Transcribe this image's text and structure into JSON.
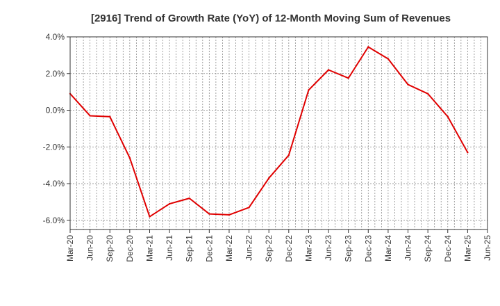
{
  "chart_data": {
    "type": "line",
    "title": "[2916]  Trend of Growth Rate (YoY) of 12-Month Moving Sum of Revenues",
    "xlabel": "",
    "ylabel": "",
    "ylim": [
      -6.5,
      4.0
    ],
    "y_ticks": [
      4.0,
      2.0,
      0.0,
      -2.0,
      -4.0,
      -6.0
    ],
    "y_tick_labels": [
      "4.0%",
      "2.0%",
      "0.0%",
      "-2.0%",
      "-4.0%",
      "-6.0%"
    ],
    "x_tick_labels": [
      "Mar-20",
      "Jun-20",
      "Sep-20",
      "Dec-20",
      "Mar-21",
      "Jun-21",
      "Sep-21",
      "Dec-21",
      "Mar-22",
      "Jun-22",
      "Sep-22",
      "Dec-22",
      "Mar-23",
      "Jun-23",
      "Sep-23",
      "Dec-23",
      "Mar-24",
      "Jun-24",
      "Sep-24",
      "Dec-24",
      "Mar-25",
      "Jun-25"
    ],
    "grid": true,
    "line_color": "#e00000",
    "series": [
      {
        "x": [
          "Mar-20",
          "Jun-20",
          "Sep-20",
          "Dec-20",
          "Mar-21",
          "Jun-21",
          "Sep-21",
          "Dec-21",
          "Mar-22",
          "Jun-22",
          "Sep-22",
          "Dec-22",
          "Mar-23",
          "Jun-23",
          "Sep-23",
          "Dec-23",
          "Mar-24",
          "Jun-24",
          "Sep-24",
          "Dec-24",
          "Mar-25"
        ],
        "values": [
          0.9,
          -0.3,
          -0.35,
          -2.6,
          -5.8,
          -5.1,
          -4.8,
          -5.65,
          -5.7,
          -5.3,
          -3.7,
          -2.45,
          1.1,
          2.2,
          1.75,
          3.45,
          2.8,
          1.4,
          0.9,
          -0.35,
          -2.3
        ]
      }
    ]
  }
}
